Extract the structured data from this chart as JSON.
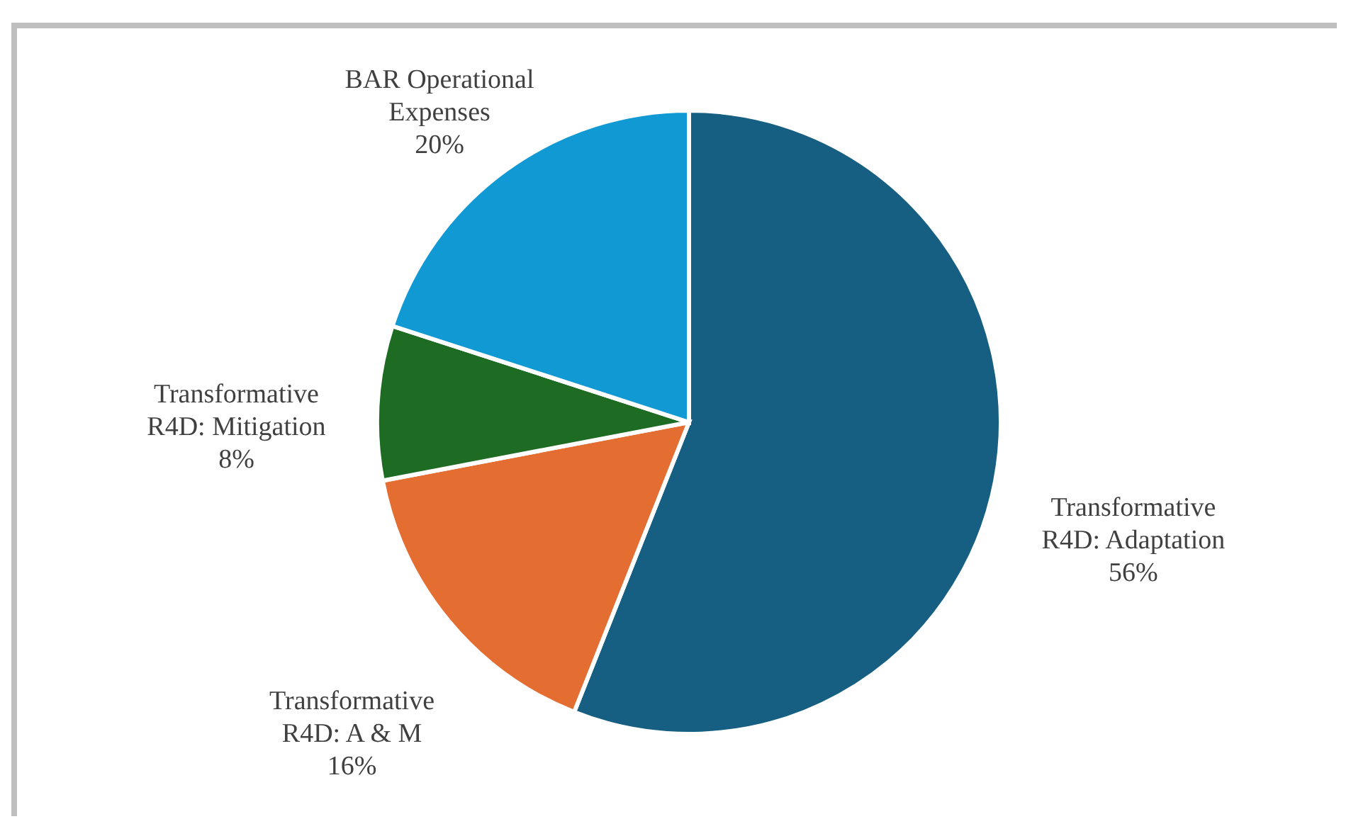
{
  "chart_data": {
    "type": "pie",
    "categories": [
      "Transformative R4D: Adaptation",
      "Transformative R4D: A & M",
      "Transformative R4D: Mitigation",
      "BAR Operational Expenses"
    ],
    "values": [
      56,
      16,
      8,
      20
    ],
    "colors": [
      "#175f82",
      "#e46d32",
      "#1e6b23",
      "#1199d3"
    ],
    "value_labels": [
      "56%",
      "16%",
      "8%",
      "20%"
    ]
  }
}
